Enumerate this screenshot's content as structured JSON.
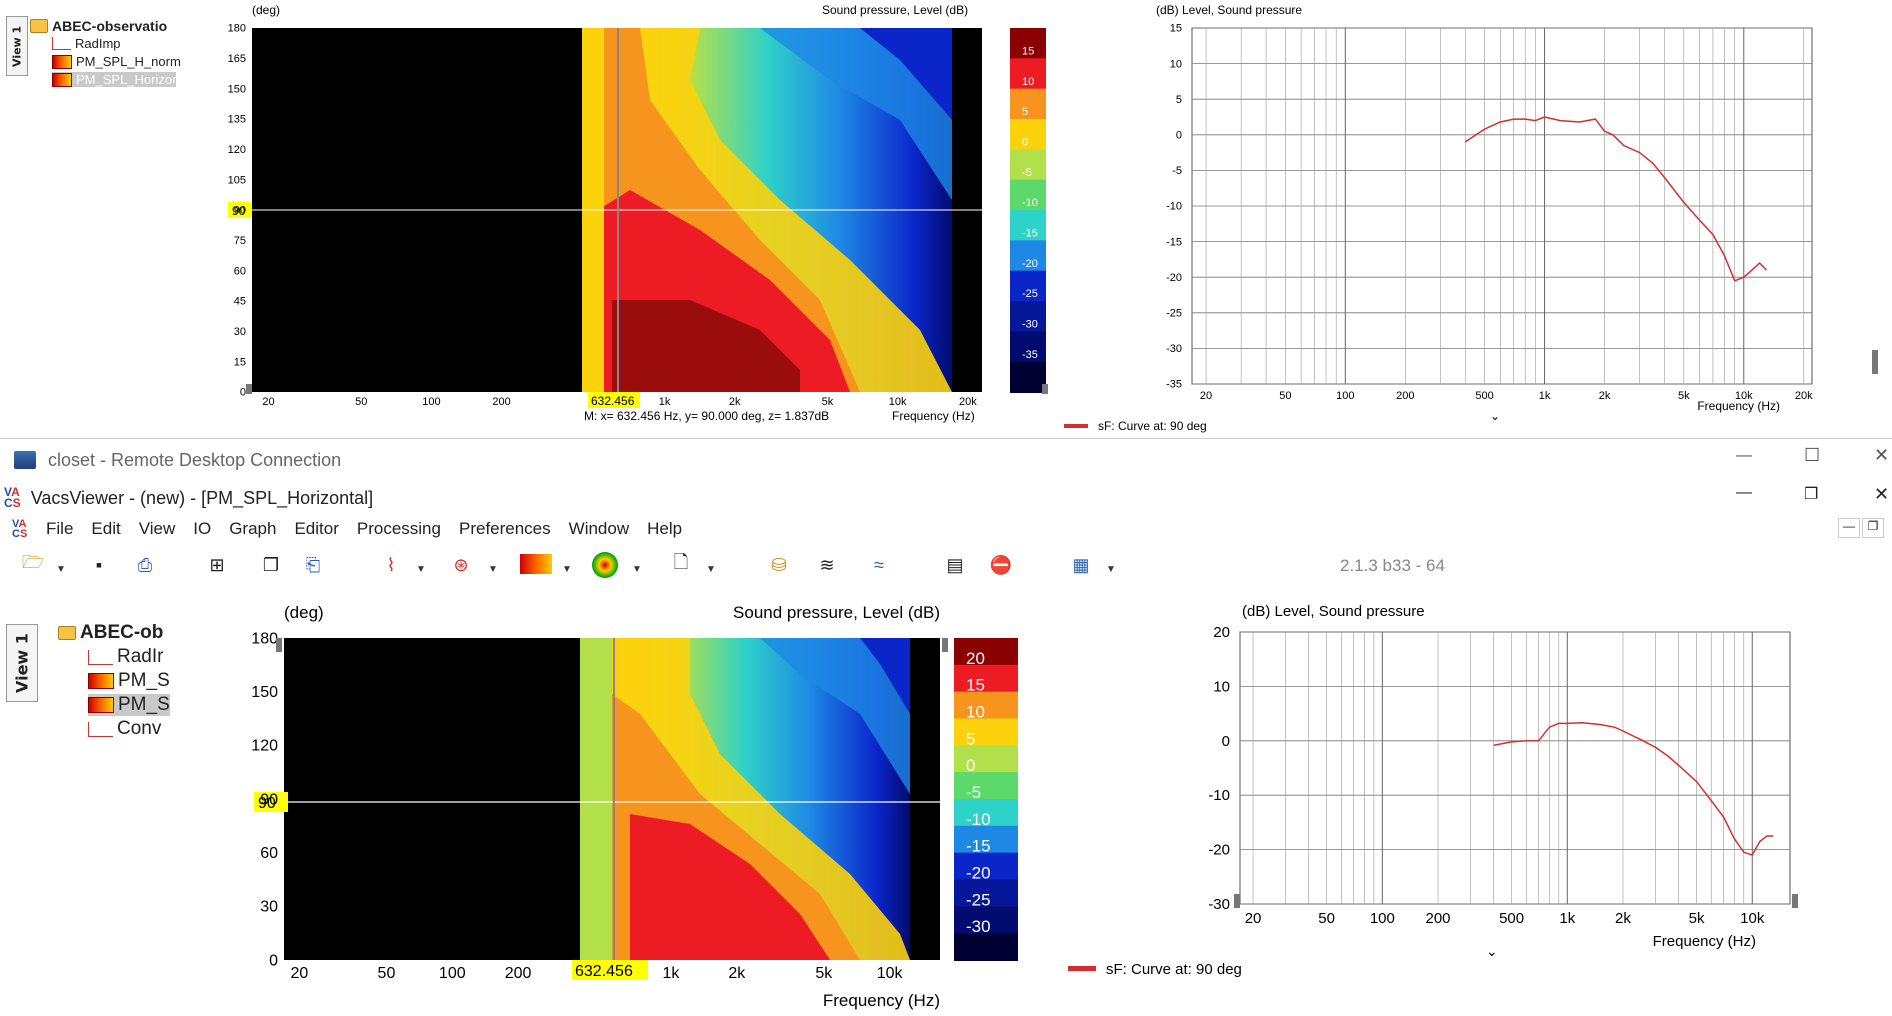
{
  "top_view": {
    "view_tab": "View 1",
    "tree": [
      {
        "label": "ABEC-observatio",
        "icon": "folder-icon"
      },
      {
        "label": "RadImp",
        "icon": "line-plot-icon"
      },
      {
        "label": "PM_SPL_H_norm",
        "icon": "color-map-icon"
      },
      {
        "label": "PM_SPL_Horizor",
        "icon": "color-map-icon",
        "selected": true
      }
    ],
    "contour": {
      "y_unit": "(deg)",
      "title": "Sound pressure, Level  (dB)",
      "y_ticks": [
        "180",
        "165",
        "150",
        "135",
        "120",
        "105",
        "90",
        "75",
        "60",
        "45",
        "30",
        "15",
        "0"
      ],
      "x_ticks": [
        "20",
        "50",
        "100",
        "200",
        "1k",
        "2k",
        "5k",
        "10k",
        "20k"
      ],
      "marker_x": "632.456",
      "marker_y": "90",
      "readout": "M:  x= 632.456 Hz,  y= 90.000 deg,  z= 1.837dB",
      "x_label": "Frequency  (Hz)",
      "legend_ticks": [
        "15",
        "10",
        "5",
        "0",
        "-5",
        "-10",
        "-15",
        "-20",
        "-25",
        "-30",
        "-35"
      ]
    },
    "line_plot": {
      "title": "(dB)  Level, Sound pressure",
      "y_ticks": [
        "15",
        "10",
        "5",
        "0",
        "-5",
        "-10",
        "-15",
        "-20",
        "-25",
        "-30",
        "-35"
      ],
      "x_ticks": [
        "20",
        "50",
        "100",
        "200",
        "500",
        "1k",
        "2k",
        "5k",
        "10k",
        "20k"
      ],
      "x_label": "Frequency  (Hz)",
      "legend": "sF: Curve at: 90 deg",
      "curve_color": "#d32f2f"
    }
  },
  "rdp": {
    "title": "closet - Remote Desktop Connection",
    "minimize": "—",
    "maximize": "☐",
    "close": "✕"
  },
  "app": {
    "title": "VacsViewer - (new) - [PM_SPL_Horizontal]",
    "menu": [
      "File",
      "Edit",
      "View",
      "IO",
      "Graph",
      "Editor",
      "Processing",
      "Preferences",
      "Window",
      "Help"
    ],
    "version": "2.1.3 b33 - 64",
    "toolbar_icons": [
      "open-folder-icon",
      "save-icon",
      "print-icon",
      "tree-icon",
      "copy-icon",
      "paste-icon",
      "line-chart-icon",
      "polar-chart-icon",
      "color-map-icon",
      "balloon-icon",
      "new-page-icon",
      "load-data-icon",
      "waterfall-icon",
      "multi-curve-icon",
      "spectrogram-icon",
      "stop-icon",
      "grid-icon"
    ]
  },
  "bottom_view": {
    "view_tab": "View 1",
    "tree": [
      {
        "label": "ABEC-ob",
        "icon": "folder-icon"
      },
      {
        "label": "RadIr",
        "icon": "line-plot-icon"
      },
      {
        "label": "PM_S",
        "icon": "color-map-icon"
      },
      {
        "label": "PM_S",
        "icon": "color-map-icon",
        "selected": true
      },
      {
        "label": "Conv",
        "icon": "line-plot-icon"
      }
    ],
    "contour": {
      "y_unit": "(deg)",
      "title": "Sound pressure, Level  (dB)",
      "y_ticks": [
        "180",
        "150",
        "120",
        "90",
        "60",
        "30",
        "0"
      ],
      "x_ticks": [
        "20",
        "50",
        "100",
        "200",
        "1k",
        "2k",
        "5k",
        "10k"
      ],
      "marker_x": "632.456",
      "marker_y": "90",
      "x_label": "Frequency  (Hz)",
      "legend_ticks": [
        "20",
        "15",
        "10",
        "5",
        "0",
        "-5",
        "-10",
        "-15",
        "-20",
        "-25",
        "-30"
      ]
    },
    "line_plot": {
      "title": "(dB)  Level, Sound pressure",
      "y_ticks": [
        "20",
        "10",
        "0",
        "-10",
        "-20",
        "-30"
      ],
      "x_ticks": [
        "20",
        "50",
        "100",
        "200",
        "500",
        "1k",
        "2k",
        "5k",
        "10k"
      ],
      "x_label": "Frequency  (Hz)",
      "legend": "sF: Curve at: 90 deg",
      "curve_color": "#d32f2f"
    }
  },
  "chart_data": [
    {
      "type": "line",
      "title": "(dB)  Level, Sound pressure",
      "xlabel": "Frequency  (Hz)",
      "ylabel": "(dB)",
      "x_scale": "log",
      "ylim": [
        -35,
        15
      ],
      "series": [
        {
          "name": "sF: Curve at: 90 deg",
          "x": [
            400,
            500,
            600,
            700,
            800,
            900,
            1000,
            1200,
            1500,
            1800,
            2000,
            2200,
            2500,
            3000,
            3500,
            4000,
            5000,
            6000,
            7000,
            8000,
            9000,
            10000,
            11000,
            12000,
            13000
          ],
          "y": [
            -1,
            0.8,
            1.8,
            2.2,
            2.2,
            2,
            2.5,
            2,
            1.8,
            2.2,
            0.5,
            0,
            -1.5,
            -2.5,
            -4,
            -6,
            -9.5,
            -12,
            -14,
            -17,
            -20.5,
            -20,
            -19,
            -18,
            -19
          ]
        }
      ]
    },
    {
      "type": "line",
      "title": "(dB)  Level, Sound pressure",
      "xlabel": "Frequency  (Hz)",
      "ylabel": "(dB)",
      "x_scale": "log",
      "ylim": [
        -30,
        20
      ],
      "series": [
        {
          "name": "sF: Curve at: 90 deg",
          "x": [
            400,
            500,
            600,
            700,
            800,
            900,
            1000,
            1200,
            1500,
            1800,
            2000,
            2500,
            3000,
            3500,
            4000,
            5000,
            6000,
            7000,
            8000,
            9000,
            10000,
            11000,
            12000,
            13000
          ],
          "y": [
            -0.8,
            -0.2,
            0,
            0,
            2.5,
            3.2,
            3.2,
            3.3,
            3.0,
            2.5,
            1.8,
            0.2,
            -1.2,
            -2.8,
            -4.5,
            -7.5,
            -11,
            -14,
            -18,
            -20.5,
            -21,
            -18.5,
            -17.5,
            -17.5
          ]
        }
      ]
    }
  ]
}
